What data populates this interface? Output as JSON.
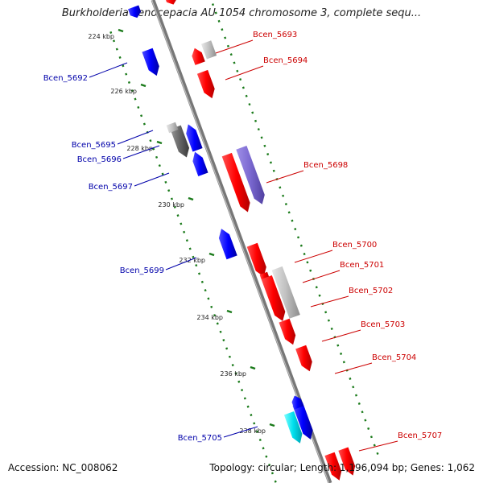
{
  "title": "Burkholderia cenocepacia AU 1054 chromosome 3, complete sequ...",
  "footer": {
    "accession": "Accession: NC_008062",
    "topology": "Topology: circular; Length: 1,196,094 bp; Genes: 1,062"
  },
  "colors": {
    "backbone": "#888888",
    "ticks": "#1a7a1a",
    "forward_label": "#cc0000",
    "reverse_label": "#0000aa",
    "red": "#ff0000",
    "blue": "#0000ff",
    "gray": "#c0c0c0",
    "darkgray": "#666666",
    "purple": "#8070d0",
    "cyan": "#00e0ee"
  },
  "ticks": [
    "224 kbp",
    "226 kbp",
    "228 kbp",
    "230 kbp",
    "232 kbp",
    "234 kbp",
    "236 kbp",
    "238 kbp"
  ],
  "labels": {
    "forward": [
      "Bcen_5693",
      "Bcen_5694",
      "Bcen_5698",
      "Bcen_5700",
      "Bcen_5701",
      "Bcen_5702",
      "Bcen_5703",
      "Bcen_5704",
      "Bcen_5707"
    ],
    "reverse": [
      "Bcen_5692",
      "Bcen_5695",
      "Bcen_5696",
      "Bcen_5697",
      "Bcen_5699",
      "Bcen_5705"
    ]
  }
}
